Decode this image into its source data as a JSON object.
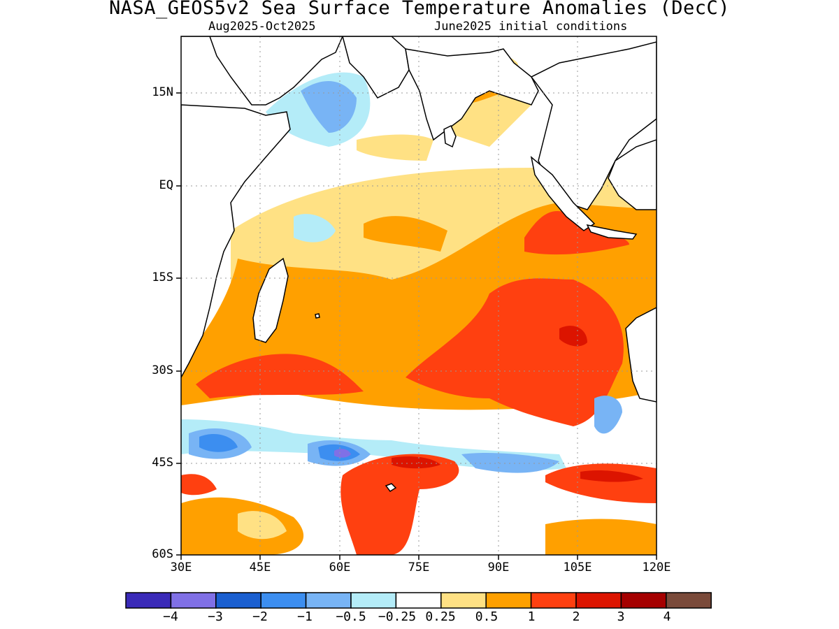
{
  "title": "NASA_GEOS5v2 Sea Surface Temperature Anomalies (DecC)",
  "period": "Aug2025-Oct2025",
  "init_conditions": "June2025 initial conditions",
  "lat_ticks": [
    "15N",
    "EQ",
    "15S",
    "30S",
    "45S",
    "60S"
  ],
  "lon_ticks": [
    "30E",
    "45E",
    "60E",
    "75E",
    "90E",
    "105E",
    "120E"
  ],
  "colorbar": {
    "labels": [
      "−4",
      "−3",
      "−2",
      "−1",
      "−0.5",
      "−0.25",
      "0.25",
      "0.5",
      "1",
      "2",
      "3",
      "4"
    ],
    "colors": [
      "#3a2ab8",
      "#8070e6",
      "#1a5fd0",
      "#3c8ef0",
      "#78b4f5",
      "#b4ecf8",
      "#ffffff",
      "#ffe184",
      "#ffa000",
      "#ff4010",
      "#dc1400",
      "#a50000",
      "#7a4a3a"
    ]
  },
  "anomaly_colors": {
    "neg_025": "#b4ecf8",
    "neg_05": "#78b4f5",
    "neg_1": "#3c8ef0",
    "neg_2": "#1a5fd0",
    "neg_3": "#8070e6",
    "pos_025": "#ffe184",
    "pos_05": "#ffa000",
    "pos_1": "#ff4010",
    "pos_2": "#dc1400",
    "pos_3": "#a50000"
  }
}
